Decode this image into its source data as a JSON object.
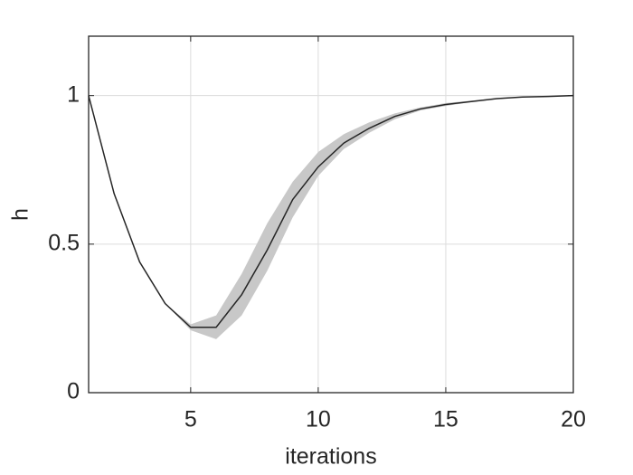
{
  "chart_data": {
    "type": "line",
    "x": [
      1,
      2,
      3,
      4,
      5,
      6,
      7,
      8,
      9,
      10,
      11,
      12,
      13,
      14,
      15,
      16,
      17,
      18,
      19,
      20
    ],
    "series": [
      {
        "color": "#262626",
        "values": [
          1.0,
          0.67,
          0.44,
          0.3,
          0.22,
          0.22,
          0.33,
          0.48,
          0.65,
          0.76,
          0.84,
          0.89,
          0.93,
          0.955,
          0.97,
          0.98,
          0.99,
          0.995,
          0.997,
          1.0
        ]
      }
    ],
    "band": {
      "color": "#c8c8c8",
      "lower": [
        1.0,
        0.67,
        0.44,
        0.3,
        0.21,
        0.18,
        0.26,
        0.41,
        0.59,
        0.73,
        0.82,
        0.875,
        0.92,
        0.95,
        0.965,
        0.978,
        0.988,
        0.994,
        0.997,
        1.0
      ],
      "upper": [
        1.0,
        0.67,
        0.44,
        0.3,
        0.23,
        0.26,
        0.4,
        0.57,
        0.71,
        0.81,
        0.87,
        0.91,
        0.94,
        0.96,
        0.975,
        0.983,
        0.991,
        0.996,
        0.998,
        1.0
      ]
    },
    "xlabel": "iterations",
    "ylabel": "h",
    "xlim": [
      1,
      20
    ],
    "ylim": [
      0,
      1.2
    ],
    "xticks": [
      5,
      10,
      15,
      20
    ],
    "yticks": [
      0,
      0.5,
      1
    ],
    "grid": true
  }
}
